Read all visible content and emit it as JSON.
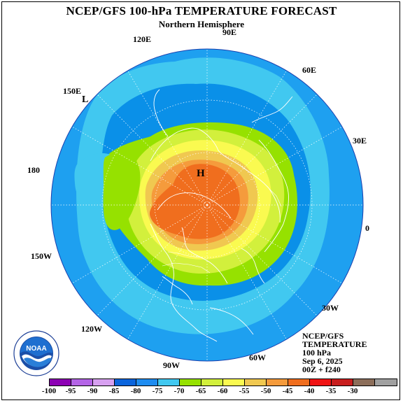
{
  "header": {
    "title": "NCEP/GFS 100-hPa TEMPERATURE FORECAST",
    "subtitle": "Northern Hemisphere"
  },
  "map": {
    "high_marker": "H",
    "low_marker": "L",
    "longitude_labels": {
      "e120": "120E",
      "e90": "90E",
      "e60": "60E",
      "e150": "150E",
      "e30": "30E",
      "lon180": "180",
      "lon0": "0",
      "w150": "150W",
      "w30": "30W",
      "w120": "120W",
      "w60": "60W",
      "w90": "90W"
    },
    "colors": {
      "ocean_fill": "#1ea0f0",
      "ring_cyan": "#41c8f0",
      "ring_blue": "#0a90e8",
      "green": "#96e100",
      "yellow_green": "#d2f03c",
      "yellow": "#fafa50",
      "pale_orange": "#f0c850",
      "orange": "#f59b3c",
      "deep_orange": "#f06e1e",
      "coast": "#ffffff"
    }
  },
  "info": {
    "line1": "NCEP/GFS",
    "line2": "TEMPERATURE",
    "line3": "100 hPa",
    "line4": "Sep 6, 2025",
    "line5": "00Z + f240"
  },
  "legend": {
    "colors": [
      "#8c00b4",
      "#b464e6",
      "#d7a0f0",
      "#0a64dc",
      "#1e8cf0",
      "#41c8f0",
      "#96e100",
      "#d2f03c",
      "#fafa50",
      "#f0c850",
      "#f59b3c",
      "#f06e1e",
      "#f01414",
      "#c81e1e",
      "#8c6e5a",
      "#a0a0a0"
    ],
    "ticks": [
      "-100",
      "-95",
      "-90",
      "-85",
      "-80",
      "-75",
      "-70",
      "-65",
      "-60",
      "-55",
      "-50",
      "-45",
      "-40",
      "-35",
      "-30"
    ]
  },
  "logo": {
    "text": "NOAA"
  }
}
